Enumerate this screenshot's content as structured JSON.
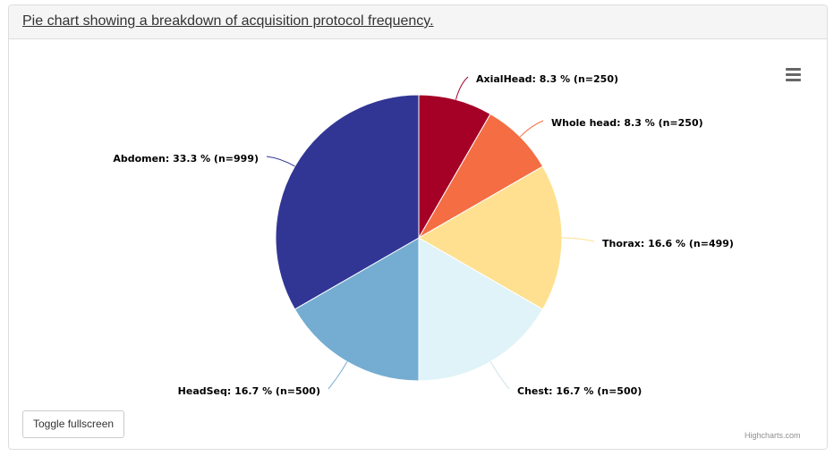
{
  "panel": {
    "title": "Pie chart showing a breakdown of acquisition protocol frequency."
  },
  "chart_data": {
    "type": "pie",
    "title": "",
    "slices": [
      {
        "name": "AxialHead",
        "percent": 8.3,
        "n": 250,
        "label": "AxialHead: 8.3 % (n=250)",
        "color": "#a50026"
      },
      {
        "name": "Whole head",
        "percent": 8.3,
        "n": 250,
        "label": "Whole head: 8.3 % (n=250)",
        "color": "#f46d43"
      },
      {
        "name": "Thorax",
        "percent": 16.6,
        "n": 499,
        "label": "Thorax: 16.6 % (n=499)",
        "color": "#fee090"
      },
      {
        "name": "Chest",
        "percent": 16.7,
        "n": 500,
        "label": "Chest: 16.7 % (n=500)",
        "color": "#e0f3f8"
      },
      {
        "name": "HeadSeq",
        "percent": 16.7,
        "n": 500,
        "label": "HeadSeq: 16.7 % (n=500)",
        "color": "#74add1"
      },
      {
        "name": "Abdomen",
        "percent": 33.3,
        "n": 999,
        "label": "Abdomen: 33.3 % (n=999)",
        "color": "#313695"
      }
    ]
  },
  "chart": {
    "credits": "Highcharts.com",
    "menu_icon": "hamburger-menu-icon"
  },
  "footer": {
    "toggle_label": "Toggle fullscreen"
  }
}
